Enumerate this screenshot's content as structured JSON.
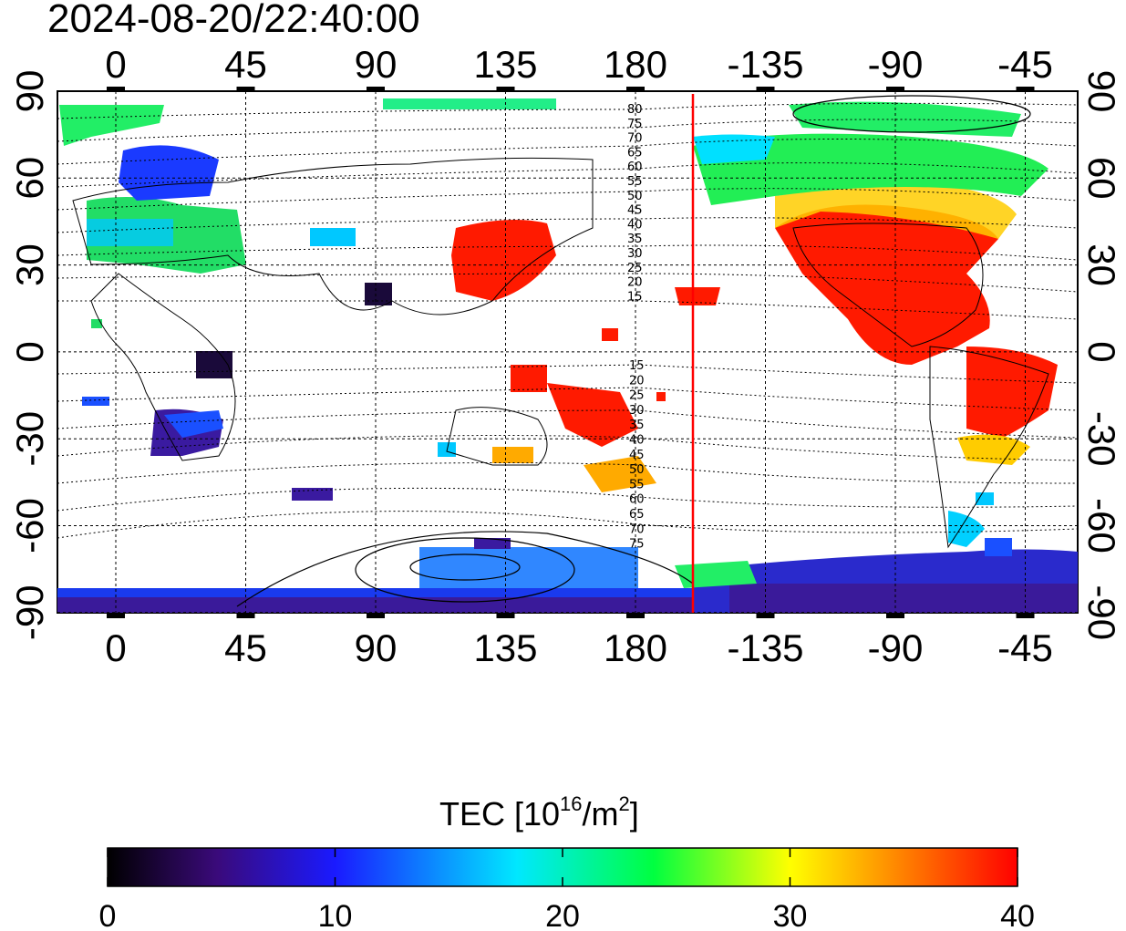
{
  "title": "2024-08-20/22:40:00",
  "map": {
    "x_ticks": [
      "0",
      "45",
      "90",
      "135",
      "180",
      "-135",
      "-90",
      "-45"
    ],
    "y_ticks_left": [
      "90",
      "60",
      "30",
      "0",
      "-30",
      "-60",
      "-90"
    ],
    "y_ticks_right": [
      "90",
      "60",
      "30",
      "0",
      "-30",
      "-60",
      "-90"
    ],
    "contour_labels_north": [
      "80",
      "75",
      "70",
      "65",
      "60",
      "55",
      "50",
      "45",
      "40",
      "35",
      "30",
      "25",
      "20",
      "15"
    ],
    "contour_labels_south": [
      "15",
      "20",
      "25",
      "30",
      "35",
      "40",
      "45",
      "50",
      "55",
      "60",
      "65",
      "70",
      "75"
    ],
    "terminator_color": "#ff0000"
  },
  "colorbar": {
    "title_main": "TEC  [10",
    "title_sup": "16",
    "title_mid": "/m",
    "title_sup2": "2",
    "title_end": "]",
    "ticks": [
      "0",
      "10",
      "20",
      "30",
      "40"
    ],
    "range": [
      0,
      40
    ],
    "stops": [
      "#000000",
      "#3a0a7a",
      "#1a1aff",
      "#00e8ff",
      "#00ff40",
      "#ffff00",
      "#ff0000"
    ]
  }
}
